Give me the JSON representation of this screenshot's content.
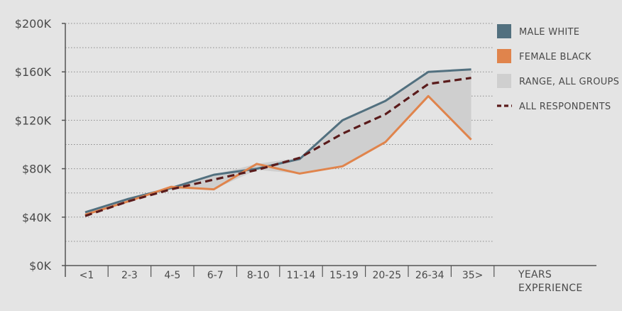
{
  "chart_data": {
    "type": "line",
    "title": "",
    "xlabel": [
      "YEARS",
      "EXPERIENCE"
    ],
    "ylabel": "",
    "categories": [
      "<1",
      "2-3",
      "4-5",
      "6-7",
      "8-10",
      "11-14",
      "15-19",
      "20-25",
      "26-34",
      "35>"
    ],
    "yticks": [
      0,
      40000,
      80000,
      120000,
      160000,
      200000
    ],
    "ytick_labels": [
      "$0K",
      "$40K",
      "$80K",
      "$120K",
      "$160K",
      "$200K"
    ],
    "ylim": [
      0,
      200000
    ],
    "grid": "dotted horizontal every 20K",
    "legend_position": "right",
    "series": [
      {
        "name": "MALE WHITE",
        "color": "#52707f",
        "style": "solid",
        "values": [
          44000,
          55000,
          64000,
          75000,
          80000,
          88000,
          120000,
          136000,
          160000,
          162000
        ]
      },
      {
        "name": "FEMALE BLACK",
        "color": "#e0844c",
        "style": "solid",
        "values": [
          42000,
          53000,
          65000,
          63000,
          84000,
          76000,
          82000,
          102000,
          140000,
          104000
        ]
      },
      {
        "name": "ALL RESPONDENTS",
        "color": "#5a1b1b",
        "style": "dashed",
        "values": [
          41000,
          53000,
          63000,
          71000,
          79000,
          89000,
          109000,
          125000,
          150000,
          155000
        ]
      }
    ],
    "range_band": {
      "name": "RANGE, ALL GROUPS",
      "color": "#cfcfcf",
      "upper": [
        44000,
        55000,
        65000,
        75000,
        84000,
        89000,
        120000,
        136000,
        160000,
        162000
      ],
      "lower": [
        41000,
        53000,
        63000,
        63000,
        79000,
        76000,
        82000,
        102000,
        140000,
        104000
      ]
    }
  }
}
